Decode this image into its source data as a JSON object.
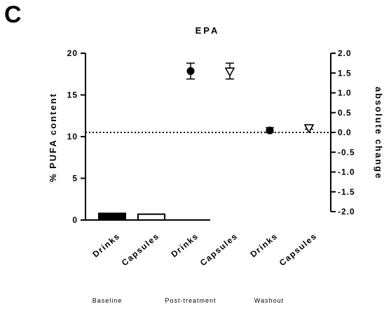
{
  "panel_label": "C",
  "chart_data": {
    "type": "scatter",
    "title": "EPA",
    "ylabel": "% PUFA content",
    "y2label": "absolute change",
    "ylim": [
      0,
      20
    ],
    "y2lim": [
      -2.0,
      2.0
    ],
    "yticks": [
      "0",
      "5",
      "10",
      "15",
      "20"
    ],
    "y2ticks": [
      "2.0",
      "1.5",
      "1.0",
      "0.5",
      "0.0",
      "-0.5",
      "-1.0",
      "-1.5",
      "-2.0"
    ],
    "categories": [
      "Drinks",
      "Capsules",
      "Drinks",
      "Capsules",
      "Drinks",
      "Capsules"
    ],
    "groups": [
      "Baseline",
      "Post-treatment",
      "Washout"
    ],
    "reference_line": {
      "axis": "right",
      "value": 0.0,
      "style": "dotted"
    },
    "baseline_bars": [
      {
        "category": "Drinks",
        "group": "Baseline",
        "value": 0.8,
        "fill": "#000000"
      },
      {
        "category": "Capsules",
        "group": "Baseline",
        "value": 0.7,
        "fill": "#ffffff"
      }
    ],
    "changes": [
      {
        "category": "Drinks",
        "group": "Post-treatment",
        "value": 1.55,
        "low": 1.35,
        "high": 1.75,
        "marker": "filled-circle"
      },
      {
        "category": "Capsules",
        "group": "Post-treatment",
        "value": 1.55,
        "low": 1.35,
        "high": 1.75,
        "marker": "open-triangle-down"
      },
      {
        "category": "Drinks",
        "group": "Washout",
        "value": 0.05,
        "low": 0.0,
        "high": 0.12,
        "marker": "filled-circle"
      },
      {
        "category": "Capsules",
        "group": "Washout",
        "value": 0.12,
        "low": 0.08,
        "high": 0.16,
        "marker": "open-triangle-down"
      }
    ]
  }
}
